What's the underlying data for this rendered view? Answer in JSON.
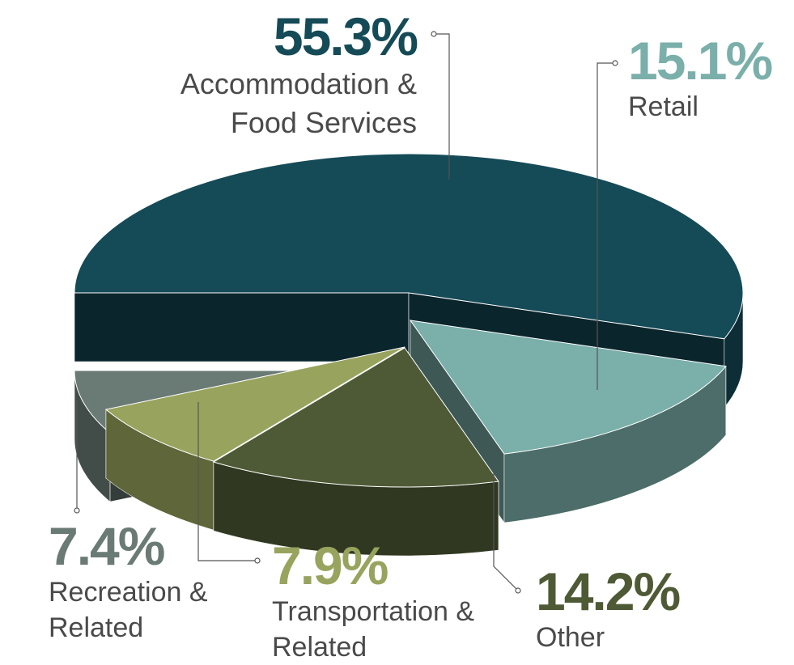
{
  "chart_data": {
    "type": "pie",
    "categories": [
      "Accommodation & Food Services",
      "Retail",
      "Other",
      "Transportation & Related",
      "Recreation & Related"
    ],
    "values": [
      55.3,
      15.1,
      14.2,
      7.9,
      7.4
    ],
    "value_labels": [
      "55.3%",
      "15.1%",
      "14.2%",
      "7.9%",
      "7.4%"
    ],
    "colors": [
      "#154a57",
      "#7aafaa",
      "#4e5a35",
      "#98a45e",
      "#6a7a75"
    ]
  }
}
